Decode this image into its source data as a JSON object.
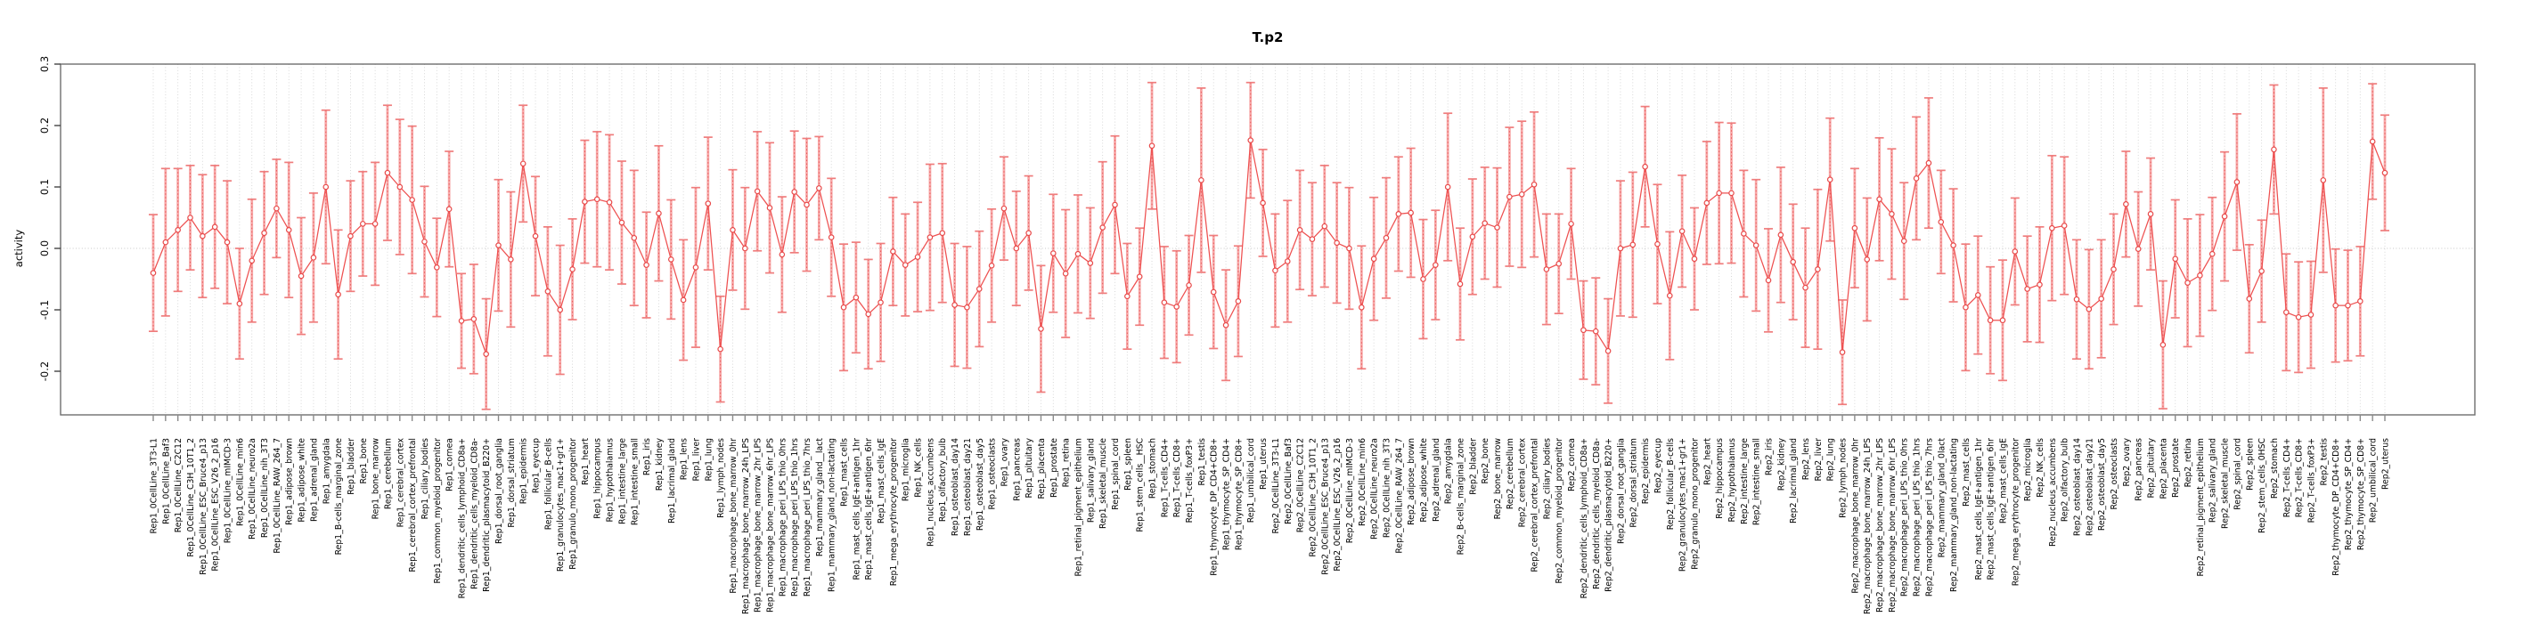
{
  "chart_data": {
    "type": "line",
    "title": "T.p2",
    "ylabel": "activity",
    "xlabel": "",
    "ylim": [
      -0.27,
      0.3
    ],
    "yticks": [
      0.3,
      0.2,
      0.1,
      0.0,
      -0.1,
      -0.2
    ],
    "grid": "dotted vertical gridline per category; dotted horizontal line at 0",
    "legend_position": "none",
    "marker": "open-circle",
    "line_color": "#ee5050",
    "error_bar_color": "#f7a8a8",
    "error_cap_color": "#ef7d7d",
    "gridline_color": "#d4d4d4",
    "axis_color": "#6e6e6e",
    "categories": [
      "Rep1_0CellLine_3T3-L1",
      "Rep1_0CellLine_Baf3",
      "Rep1_0CellLine_C2C12",
      "Rep1_0CellLine_C3H_10T1_2",
      "Rep1_0CellLine_ESC_Bruce4_p13",
      "Rep1_0CellLine_ESC_V26_2_p16",
      "Rep1_0CellLine_mIMCD-3",
      "Rep1_0CellLine_min6",
      "Rep1_0CellLine_neuro2a",
      "Rep1_0CellLine_nih_3T3",
      "Rep1_0CellLine_RAW_264_7",
      "Rep1_adipose_brown",
      "Rep1_adipose_white",
      "Rep1_adrenal_gland",
      "Rep1_amygdala",
      "Rep1_B-cells_marginal_zone",
      "Rep1_bladder",
      "Rep1_bone",
      "Rep1_bone_marrow",
      "Rep1_cerebellum",
      "Rep1_cerebral_cortex",
      "Rep1_cerebral_cortex_prefrontal",
      "Rep1_ciliary_bodies",
      "Rep1_common_myeloid_progenitor",
      "Rep1_cornea",
      "Rep1_dendritic_cells_lymphoid_CD8a+",
      "Rep1_dendritic_cells_myeloid_CD8a-",
      "Rep1_dendritic_plasmacytoid_B220+",
      "Rep1_dorsal_root_ganglia",
      "Rep1_dorsal_striatum",
      "Rep1_epidermis",
      "Rep1_eyecup",
      "Rep1_follicular_B-cells",
      "Rep1_granulocytes_mac1+gr1+",
      "Rep1_granulo_mono_progenitor",
      "Rep1_heart",
      "Rep1_hippocampus",
      "Rep1_hypothalamus",
      "Rep1_intestine_large",
      "Rep1_intestine_small",
      "Rep1_iris",
      "Rep1_kidney",
      "Rep1_lacrimal_gland",
      "Rep1_lens",
      "Rep1_liver",
      "Rep1_lung",
      "Rep1_lymph_nodes",
      "Rep1_macrophage_bone_marrow_0hr",
      "Rep1_macrophage_bone_marrow_24h_LPS",
      "Rep1_macrophage_bone_marrow_2hr_LPS",
      "Rep1_macrophage_bone_marrow_6hr_LPS",
      "Rep1_macrophage_peri_LPS_thio_0hrs",
      "Rep1_macrophage_peri_LPS_thio_1hrs",
      "Rep1_macrophage_peri_LPS_thio_7hrs",
      "Rep1_mammary_gland__lact",
      "Rep1_mammary_gland_non-lactating",
      "Rep1_mast_cells",
      "Rep1_mast_cells_IgE+antigen_1hr",
      "Rep1_mast_cells_IgE+antigen_6hr",
      "Rep1_mast_cells_IgE",
      "Rep1_mega_erythrocyte_progenitor",
      "Rep1_microglia",
      "Rep1_NK_cells",
      "Rep1_nucleus_accumbens",
      "Rep1_olfactory_bulb",
      "Rep1_osteoblast_day14",
      "Rep1_osteoblast_day21",
      "Rep1_osteoblast_day5",
      "Rep1_osteoclasts",
      "Rep1_ovary",
      "Rep1_pancreas",
      "Rep1_pituitary",
      "Rep1_placenta",
      "Rep1_prostate",
      "Rep1_retina",
      "Rep1_retinal_pigment_epithelium",
      "Rep1_salivary_gland",
      "Rep1_skeletal_muscle",
      "Rep1_spinal_cord",
      "Rep1_spleen",
      "Rep1_stem_cells__HSC",
      "Rep1_stomach",
      "Rep1_T-cells_CD4+",
      "Rep1_T-cells_CD8+",
      "Rep1_T-cells_foxP3+",
      "Rep1_testis",
      "Rep1_thymocyte_DP_CD4+CD8+",
      "Rep1_thymocyte_SP_CD4+",
      "Rep1_thymocyte_SP_CD8+",
      "Rep1_umbilical_cord",
      "Rep1_uterus",
      "Rep2_0CellLine_3T3-L1",
      "Rep2_0CellLine_Baf3",
      "Rep2_0CellLine_C2C12",
      "Rep2_0CellLine_C3H_10T1_2",
      "Rep2_0CellLine_ESC_Bruce4_p13",
      "Rep2_0CellLine_ESC_V26_2_p16",
      "Rep2_0CellLine_mIMCD-3",
      "Rep2_0CellLine_min6",
      "Rep2_0CellLine_neuro2a",
      "Rep2_0CellLine_nih_3T3",
      "Rep2_0CellLine_RAW_264_7",
      "Rep2_adipose_brown",
      "Rep2_adipose_white",
      "Rep2_adrenal_gland",
      "Rep2_amygdala",
      "Rep2_B-cells_marginal_zone",
      "Rep2_bladder",
      "Rep2_bone",
      "Rep2_bone_marrow",
      "Rep2_cerebellum",
      "Rep2_cerebral_cortex",
      "Rep2_cerebral_cortex_prefrontal",
      "Rep2_ciliary_bodies",
      "Rep2_common_myeloid_progenitor",
      "Rep2_cornea",
      "Rep2_dendritic_cells_lymphoid_CD8a+",
      "Rep2_dendritic_cells_myeloid_CD8a-",
      "Rep2_dendritic_plasmacytoid_B220+",
      "Rep2_dorsal_root_ganglia",
      "Rep2_dorsal_striatum",
      "Rep2_epidermis",
      "Rep2_eyecup",
      "Rep2_follicular_B-cells",
      "Rep2_granulocytes_mac1+gr1+",
      "Rep2_granulo_mono_progenitor",
      "Rep2_heart",
      "Rep2_hippocampus",
      "Rep2_hypothalamus",
      "Rep2_intestine_large",
      "Rep2_intestine_small",
      "Rep2_iris",
      "Rep2_kidney",
      "Rep2_lacrimal_gland",
      "Rep2_lens",
      "Rep2_liver",
      "Rep2_lung",
      "Rep2_lymph_nodes",
      "Rep2_macrophage_bone_marrow_0hr",
      "Rep2_macrophage_bone_marrow_24h_LPS",
      "Rep2_macrophage_bone_marrow_2hr_LPS",
      "Rep2_macrophage_bone_marrow_6hr_LPS",
      "Rep2_macrophage_peri_LPS_thio_0hrs",
      "Rep2_macrophage_peri_LPS_thio_1hrs",
      "Rep2_macrophage_peri_LPS_thio_7hrs",
      "Rep2_mammary_gland_0lact",
      "Rep2_mammary_gland_non-lactating",
      "Rep2_mast_cells",
      "Rep2_mast_cells_IgE+antigen_1hr",
      "Rep2_mast_cells_IgE+antigen_6hr",
      "Rep2_mast_cells_IgE",
      "Rep2_mega_erythrocyte_progenitor",
      "Rep2_microglia",
      "Rep2_NK_cells",
      "Rep2_nucleus_accumbens",
      "Rep2_olfactory_bulb",
      "Rep2_osteoblast_day14",
      "Rep2_osteoblast_day21",
      "Rep2_osteoblast_day5",
      "Rep2_osteoclasts",
      "Rep2_ovary",
      "Rep2_pancreas",
      "Rep2_pituitary",
      "Rep2_placenta",
      "Rep2_prostate",
      "Rep2_retina",
      "Rep2_retinal_pigment_epithelium",
      "Rep2_salivary_gland",
      "Rep2_skeletal_muscle",
      "Rep2_spinal_cord",
      "Rep2_spleen",
      "Rep2_stem_cells_0HSC",
      "Rep2_stomach",
      "Rep2_T-cells_CD4+",
      "Rep2_T-cells_CD8+",
      "Rep2_T-cells_foxP3+",
      "Rep2_testis",
      "Rep2_thymocyte_DP_CD4+CD8+",
      "Rep2_thymocyte_SP_CD4+",
      "Rep2_thymocyte_SP_CD8+",
      "Rep2_umbilical_cord",
      "Rep2_uterus"
    ],
    "values": [
      -0.04,
      0.01,
      0.03,
      0.05,
      0.02,
      0.035,
      0.01,
      -0.09,
      -0.02,
      0.025,
      0.065,
      0.03,
      -0.045,
      -0.015,
      0.1,
      -0.075,
      0.02,
      0.04,
      0.04,
      0.123,
      0.1,
      0.079,
      0.011,
      -0.031,
      0.064,
      -0.118,
      -0.115,
      -0.172,
      0.005,
      -0.018,
      0.138,
      0.02,
      -0.07,
      -0.1,
      -0.034,
      0.076,
      0.08,
      0.075,
      0.042,
      0.017,
      -0.027,
      0.057,
      -0.018,
      -0.084,
      -0.031,
      0.073,
      -0.164,
      0.03,
      0.0,
      0.093,
      0.066,
      -0.01,
      0.092,
      0.071,
      0.098,
      0.018,
      -0.096,
      -0.08,
      -0.107,
      -0.088,
      -0.005,
      -0.027,
      -0.014,
      0.018,
      0.025,
      -0.092,
      -0.096,
      -0.066,
      -0.028,
      0.065,
      0.0,
      0.025,
      -0.131,
      -0.008,
      -0.041,
      -0.009,
      -0.024,
      0.034,
      0.071,
      -0.078,
      -0.046,
      0.167,
      -0.088,
      -0.095,
      -0.06,
      0.111,
      -0.071,
      -0.125,
      -0.086,
      0.176,
      0.074,
      -0.036,
      -0.021,
      0.03,
      0.015,
      0.036,
      0.009,
      0.0,
      -0.096,
      -0.017,
      0.017,
      0.056,
      0.058,
      -0.05,
      -0.027,
      0.1,
      -0.058,
      0.019,
      0.041,
      0.034,
      0.084,
      0.088,
      0.104,
      -0.034,
      -0.025,
      0.04,
      -0.133,
      -0.135,
      -0.167,
      0.0,
      0.006,
      0.133,
      0.007,
      -0.077,
      0.028,
      -0.017,
      0.074,
      0.09,
      0.09,
      0.024,
      0.005,
      -0.052,
      0.022,
      -0.022,
      -0.064,
      -0.034,
      0.112,
      -0.169,
      0.033,
      -0.018,
      0.08,
      0.056,
      0.012,
      0.114,
      0.139,
      0.043,
      0.005,
      -0.096,
      -0.076,
      -0.117,
      -0.117,
      -0.005,
      -0.066,
      -0.059,
      0.033,
      0.037,
      -0.083,
      -0.099,
      -0.082,
      -0.034,
      0.072,
      -0.001,
      0.056,
      -0.157,
      -0.017,
      -0.056,
      -0.044,
      -0.009,
      0.052,
      0.108,
      -0.082,
      -0.037,
      0.161,
      -0.104,
      -0.112,
      -0.108,
      0.111,
      -0.093,
      -0.093,
      -0.086,
      0.174,
      0.123
    ],
    "errors": [
      0.095,
      0.12,
      0.1,
      0.085,
      0.1,
      0.1,
      0.1,
      0.09,
      0.1,
      0.1,
      0.08,
      0.11,
      0.095,
      0.105,
      0.125,
      0.105,
      0.09,
      0.085,
      0.1,
      0.11,
      0.11,
      0.12,
      0.09,
      0.08,
      0.094,
      0.077,
      0.089,
      0.09,
      0.107,
      0.11,
      0.095,
      0.097,
      0.105,
      0.105,
      0.082,
      0.1,
      0.11,
      0.11,
      0.1,
      0.11,
      0.086,
      0.11,
      0.097,
      0.098,
      0.13,
      0.108,
      0.086,
      0.098,
      0.099,
      0.097,
      0.106,
      0.094,
      0.099,
      0.108,
      0.084,
      0.096,
      0.103,
      0.09,
      0.089,
      0.096,
      0.088,
      0.083,
      0.089,
      0.119,
      0.113,
      0.1,
      0.099,
      0.094,
      0.092,
      0.084,
      0.093,
      0.093,
      0.103,
      0.096,
      0.104,
      0.096,
      0.09,
      0.107,
      0.112,
      0.086,
      0.079,
      0.103,
      0.091,
      0.091,
      0.081,
      0.15,
      0.092,
      0.09,
      0.09,
      0.094,
      0.087,
      0.092,
      0.099,
      0.097,
      0.092,
      0.099,
      0.098,
      0.099,
      0.1,
      0.1,
      0.098,
      0.093,
      0.105,
      0.097,
      0.089,
      0.12,
      0.091,
      0.094,
      0.091,
      0.097,
      0.113,
      0.119,
      0.118,
      0.09,
      0.081,
      0.09,
      0.08,
      0.087,
      0.085,
      0.11,
      0.118,
      0.098,
      0.097,
      0.104,
      0.091,
      0.083,
      0.1,
      0.115,
      0.114,
      0.103,
      0.107,
      0.084,
      0.11,
      0.094,
      0.097,
      0.13,
      0.1,
      0.085,
      0.097,
      0.1,
      0.1,
      0.106,
      0.095,
      0.1,
      0.106,
      0.084,
      0.092,
      0.103,
      0.096,
      0.087,
      0.098,
      0.087,
      0.086,
      0.094,
      0.118,
      0.112,
      0.097,
      0.097,
      0.096,
      0.09,
      0.086,
      0.093,
      0.091,
      0.104,
      0.096,
      0.104,
      0.099,
      0.092,
      0.105,
      0.111,
      0.088,
      0.083,
      0.105,
      0.095,
      0.09,
      0.087,
      0.15,
      0.092,
      0.09,
      0.089,
      0.094,
      0.094
    ]
  }
}
